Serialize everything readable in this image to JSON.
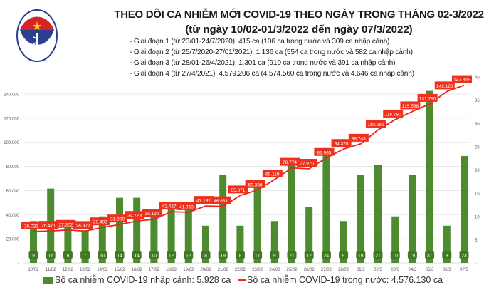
{
  "header": {
    "title": "THEO DÕI CA NHIỄM MỚI COVID-19 THEO NGÀY TRONG THÁNG 02-3/2022",
    "subtitle": "(từ ngày 10/02-01/3/2022 đến ngày 07/3/2022)",
    "phases": [
      "- Giai đoạn 1 (từ 23/01-24/7/2020): 415 ca (106 ca trong nước và 309 ca nhập cảnh)",
      "- Giai đoạn 2 (từ 25/7/2020-27/01/2021): 1.136 ca (554 ca trong nước và 582 ca nhập cảnh)",
      "- Giai đoạn 3 (từ 28/01-26/4/2021): 1.301 ca (910 ca trong nước và 391 ca nhập cảnh)",
      "- Giai đoạn 4 (từ 27/4/2021): 4.579.206 ca (4.574.560 ca trong nước và 4.646 ca nhập cảnh)"
    ],
    "logo_text": "BỘ Y TẾ MINISTRY OF HEALTH"
  },
  "chart_data": {
    "type": "bar+line",
    "categories": [
      "10/02",
      "11/02",
      "12/02",
      "13/02",
      "14/02",
      "15/02",
      "16/02",
      "17/02",
      "18/02",
      "19/02",
      "20/02",
      "21/02",
      "22/02",
      "23/02",
      "24/02",
      "25/02",
      "26/02",
      "27/02",
      "28/02",
      "01/3",
      "02/3",
      "03/3",
      "04/3",
      "05/3",
      "06/3",
      "07/3"
    ],
    "series": [
      {
        "name": "Số ca nhiễm COVID-19 nhập cảnh: 5.928 ca",
        "type": "bar",
        "axis": "right",
        "color": "#4e8a2e",
        "values": [
          9,
          16,
          9,
          7,
          10,
          14,
          14,
          10,
          12,
          12,
          8,
          19,
          8,
          17,
          9,
          21,
          12,
          24,
          9,
          19,
          21,
          10,
          19,
          37,
          8,
          23
        ],
        "labels": [
          "9",
          "16",
          "9",
          "7",
          "10",
          "14",
          "14",
          "10",
          "12",
          "12",
          "8",
          "19",
          "8",
          "17",
          "9",
          "21",
          "12",
          "24",
          "9",
          "19",
          "21",
          "10",
          "19",
          "37",
          "8",
          "23"
        ]
      },
      {
        "name": "Số ca nhiễm COVID-19 trong nước: 4.576.130 ca",
        "type": "line",
        "axis": "left",
        "color": "#e8261c",
        "values": [
          26023,
          26471,
          27302,
          26372,
          29403,
          31800,
          34723,
          36190,
          42427,
          41968,
          47192,
          46861,
          55871,
          60338,
          69119,
          78774,
          77970,
          86965,
          94376,
          98743,
          110280,
          118780,
          125568,
          131780,
          142128,
          147335
        ],
        "labels": [
          "26.023",
          "26.471",
          "27.302",
          "26.372",
          "29.403",
          "31.800",
          "34.723",
          "36.190",
          "42.427",
          "41.968",
          "47.192",
          "46.861",
          "55.871",
          "60.338",
          "69.119",
          "78.774",
          "77.970",
          "86.965",
          "94.376",
          "98.743",
          "110.280",
          "118.780",
          "125.568",
          "131.780",
          "142.128",
          "147.335"
        ]
      }
    ],
    "left_axis": {
      "ticks": [
        "-",
        "20.000",
        "40.000",
        "60.000",
        "80.000",
        "100.000",
        "120.000",
        "140.000"
      ],
      "ylim": [
        0,
        140000
      ]
    },
    "right_axis": {
      "ticks": [
        "-",
        "5",
        "10",
        "15",
        "20",
        "25",
        "30",
        "35",
        "40"
      ],
      "ylim": [
        0,
        40
      ]
    },
    "grid": true,
    "legend": "bottom"
  }
}
